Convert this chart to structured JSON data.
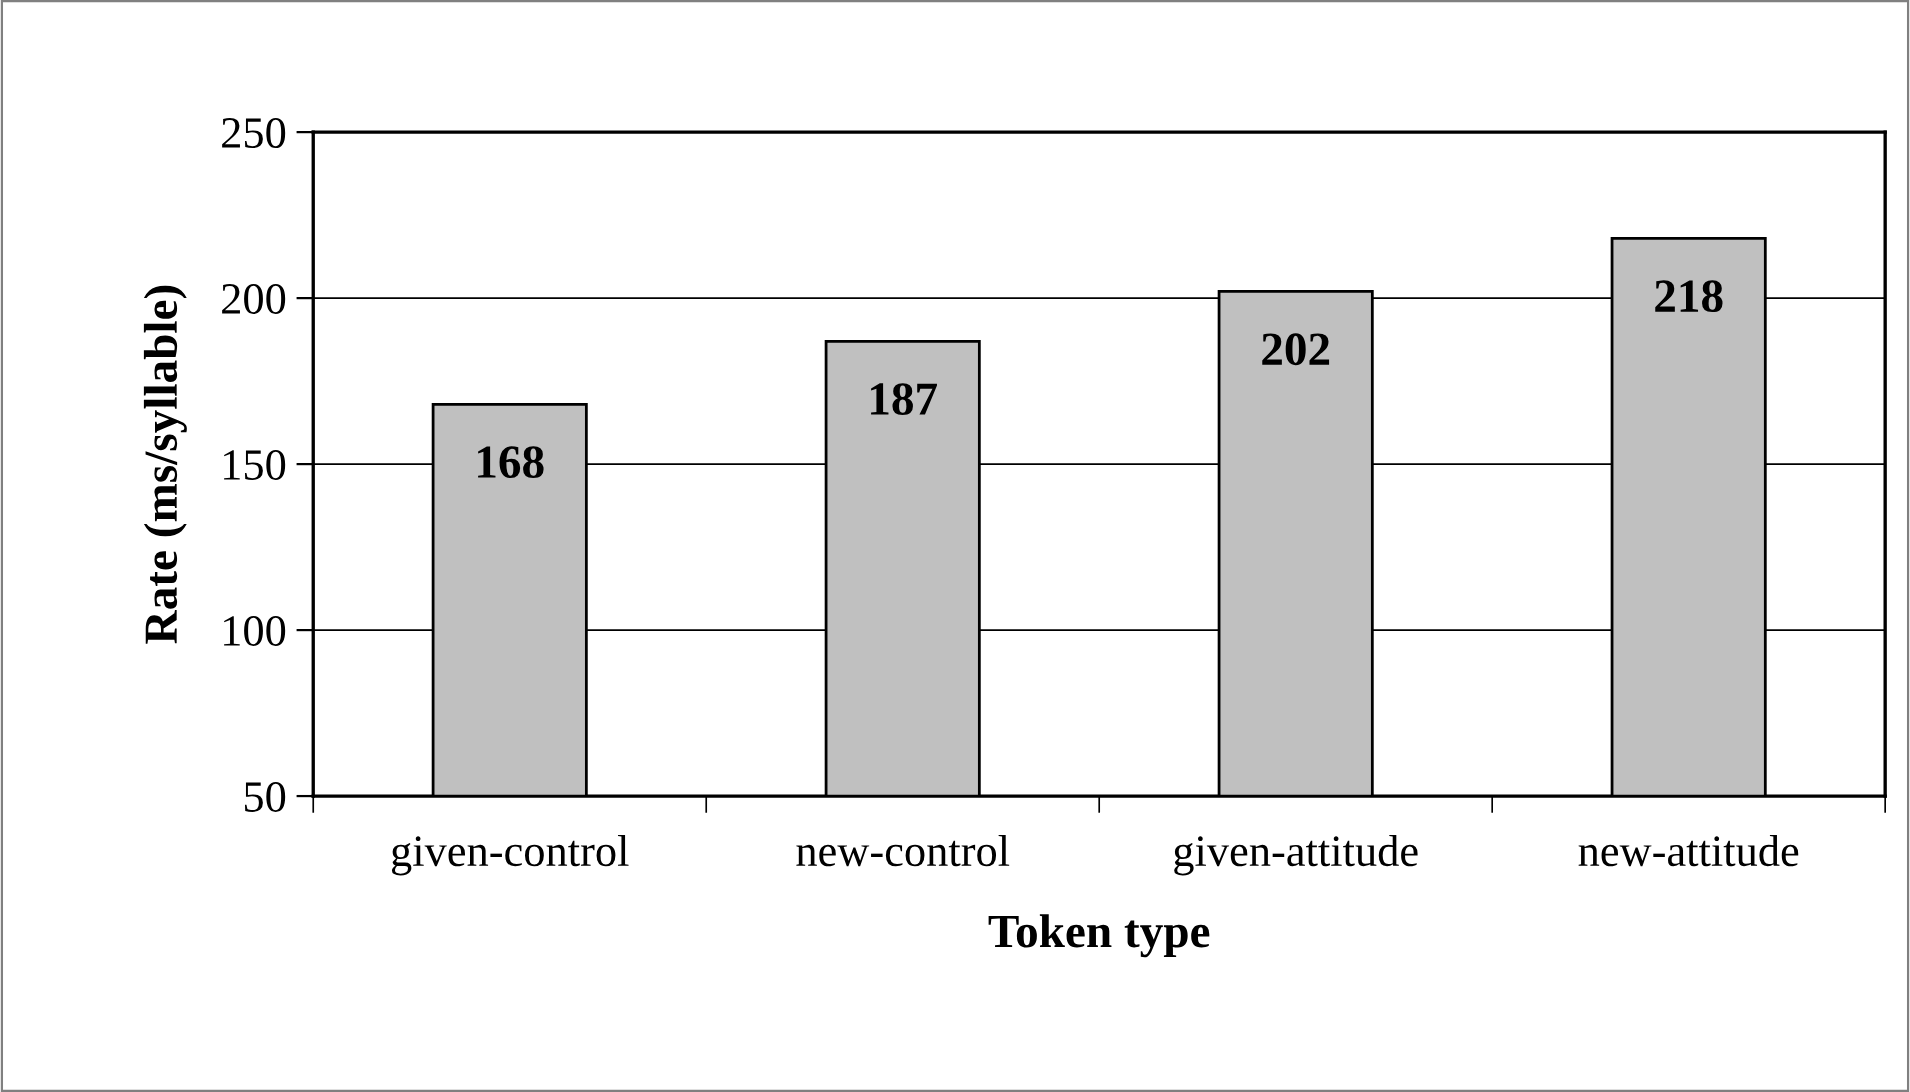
{
  "chart_data": {
    "type": "bar",
    "xlabel": "Token type",
    "ylabel": "Rate (ms/syllable)",
    "categories": [
      "given-control",
      "new-control",
      "given-attitude",
      "new-attitude"
    ],
    "values": [
      168,
      187,
      202,
      218
    ],
    "color": "#c0c0c0",
    "ylim": [
      50,
      250
    ],
    "yticks": [
      50,
      100,
      150,
      200,
      250
    ],
    "grid": "y",
    "data_labels": true,
    "legend": false
  }
}
